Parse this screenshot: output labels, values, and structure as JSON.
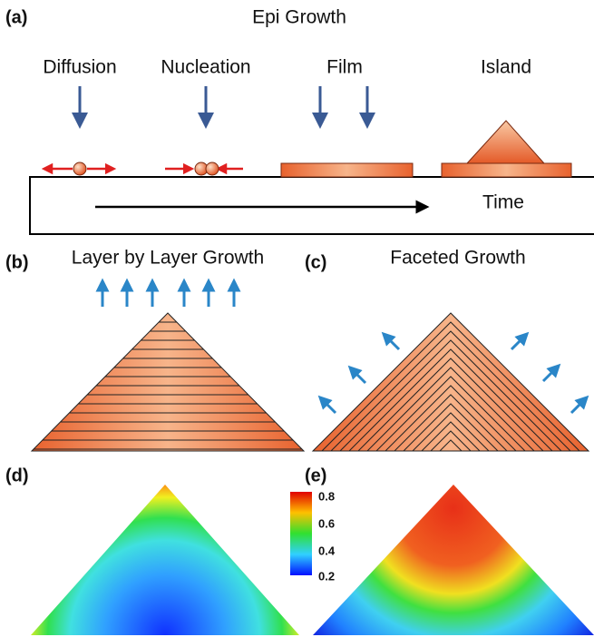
{
  "panel_a": {
    "label": "(a)",
    "title": "Epi Growth",
    "stages": [
      "Diffusion",
      "Nucleation",
      "Film",
      "Island"
    ],
    "axis": "Time"
  },
  "panel_b": {
    "label": "(b)",
    "title": "Layer by Layer Growth"
  },
  "panel_c": {
    "label": "(c)",
    "title": "Faceted Growth"
  },
  "panel_d": {
    "label": "(d)"
  },
  "panel_e": {
    "label": "(e)"
  },
  "colorbar": {
    "labels": [
      "0.8",
      "0.6",
      "0.4",
      "0.2"
    ]
  }
}
